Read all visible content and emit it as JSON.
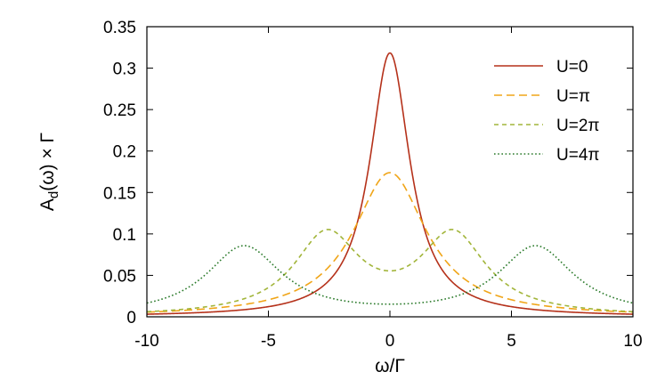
{
  "chart_data": {
    "type": "line",
    "title": "",
    "xlabel": "ω/Γ",
    "ylabel": "A_d(ω) × Γ",
    "xlim": [
      -10,
      10
    ],
    "ylim": [
      0,
      0.35
    ],
    "xticks": [
      -10,
      -5,
      0,
      5,
      10
    ],
    "yticks": [
      0,
      0.05,
      0.1,
      0.15,
      0.2,
      0.25,
      0.3,
      0.35
    ],
    "xtick_labels": [
      "-10",
      "-5",
      "0",
      "5",
      "10"
    ],
    "ytick_labels": [
      "0",
      "0.05",
      "0.1",
      "0.15",
      "0.2",
      "0.25",
      "0.3",
      "0.35"
    ],
    "grid": false,
    "legend_position": "top-right",
    "series": [
      {
        "name": "U=0",
        "color": "#b5311a",
        "dash": "solid",
        "peak_x": [
          0
        ],
        "peak_y": 0.318
      },
      {
        "name": "U=π",
        "color": "#f0a518",
        "dash": "dashed",
        "peak_x": [
          0
        ],
        "peak_y": 0.174
      },
      {
        "name": "U=2π",
        "color": "#a2b53a",
        "dash": "short-dashed",
        "peak_x": [
          -2.6,
          2.6
        ],
        "peak_y": 0.1,
        "value_at_0": 0.074
      },
      {
        "name": "U=4π",
        "color": "#2a7a2a",
        "dash": "dotted",
        "peak_x": [
          -6,
          6
        ],
        "peak_y": 0.084,
        "value_at_0": 0.023
      }
    ]
  }
}
